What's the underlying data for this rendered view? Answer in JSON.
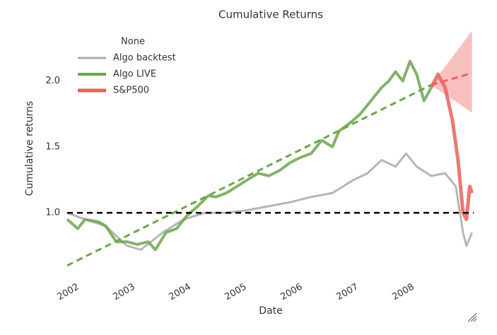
{
  "chart_data": {
    "type": "line",
    "title": "Cumulative Returns",
    "xlabel": "Date",
    "ylabel": "Cumulative returns",
    "legend_title": "None",
    "xlim": [
      2001.9,
      2009.18
    ],
    "ylim": [
      0.55,
      2.4
    ],
    "xticks": [
      2002,
      2003,
      2004,
      2005,
      2006,
      2007,
      2008
    ],
    "yticks": [
      {
        "value": 1.0,
        "label": "1.0"
      },
      {
        "value": 1.5,
        "label": "1.5"
      },
      {
        "value": 2.0,
        "label": "2.0"
      }
    ],
    "grid": false,
    "series": [
      {
        "name": "Algo backtest",
        "color": "#a9a9a9",
        "x": [
          2001.9,
          2002.22,
          2002.59,
          2002.97,
          2003.22,
          2003.61,
          2003.99,
          2004.37,
          2004.75,
          2005.13,
          2005.51,
          2005.89,
          2006.27,
          2006.65,
          2007.03,
          2007.28,
          2007.53,
          2007.78,
          2007.97,
          2008.16,
          2008.42,
          2008.67,
          2008.86,
          2008.99,
          2009.05,
          2009.15
        ],
        "values": [
          1.0,
          0.95,
          0.9,
          0.75,
          0.72,
          0.85,
          0.95,
          1.0,
          1.0,
          1.02,
          1.05,
          1.08,
          1.12,
          1.15,
          1.25,
          1.3,
          1.4,
          1.35,
          1.45,
          1.35,
          1.28,
          1.3,
          1.2,
          0.85,
          0.75,
          0.85
        ]
      },
      {
        "name": "Algo LIVE",
        "color": "#6ea54e",
        "x": [
          2001.9,
          2002.09,
          2002.22,
          2002.47,
          2002.59,
          2002.78,
          2002.97,
          2003.16,
          2003.35,
          2003.48,
          2003.67,
          2003.86,
          2004.05,
          2004.24,
          2004.43,
          2004.56,
          2004.75,
          2004.94,
          2005.13,
          2005.32,
          2005.51,
          2005.7,
          2005.89,
          2006.08,
          2006.27,
          2006.46,
          2006.65,
          2006.77,
          2006.96,
          2007.15,
          2007.34,
          2007.53,
          2007.66,
          2007.78,
          2007.91,
          2008.04,
          2008.16,
          2008.29,
          2008.42
        ],
        "values": [
          0.95,
          0.88,
          0.95,
          0.93,
          0.9,
          0.78,
          0.78,
          0.76,
          0.78,
          0.72,
          0.85,
          0.88,
          0.98,
          1.05,
          1.13,
          1.12,
          1.15,
          1.2,
          1.25,
          1.3,
          1.28,
          1.32,
          1.38,
          1.42,
          1.45,
          1.55,
          1.5,
          1.62,
          1.68,
          1.75,
          1.85,
          1.95,
          2.0,
          2.07,
          2.0,
          2.15,
          2.05,
          1.85,
          1.95
        ]
      },
      {
        "name": "S&P500",
        "color": "#e8625a",
        "x": [
          2008.42,
          2008.54,
          2008.67,
          2008.8,
          2008.9,
          2008.99,
          2009.05,
          2009.11,
          2009.15
        ],
        "values": [
          1.95,
          2.05,
          1.95,
          1.7,
          1.4,
          1.0,
          0.95,
          1.2,
          1.15
        ]
      }
    ],
    "trend": {
      "x": [
        2001.9,
        2008.42,
        2009.15
      ],
      "values": [
        0.6,
        1.97,
        2.06
      ],
      "colors": [
        "#6ea54e",
        "#e8625a"
      ]
    },
    "cone": {
      "x": [
        2008.42,
        2009.15
      ],
      "upper": [
        1.97,
        2.38
      ],
      "lower": [
        1.97,
        1.76
      ],
      "color": "#f2a5a2"
    },
    "baseline": 1.0
  }
}
